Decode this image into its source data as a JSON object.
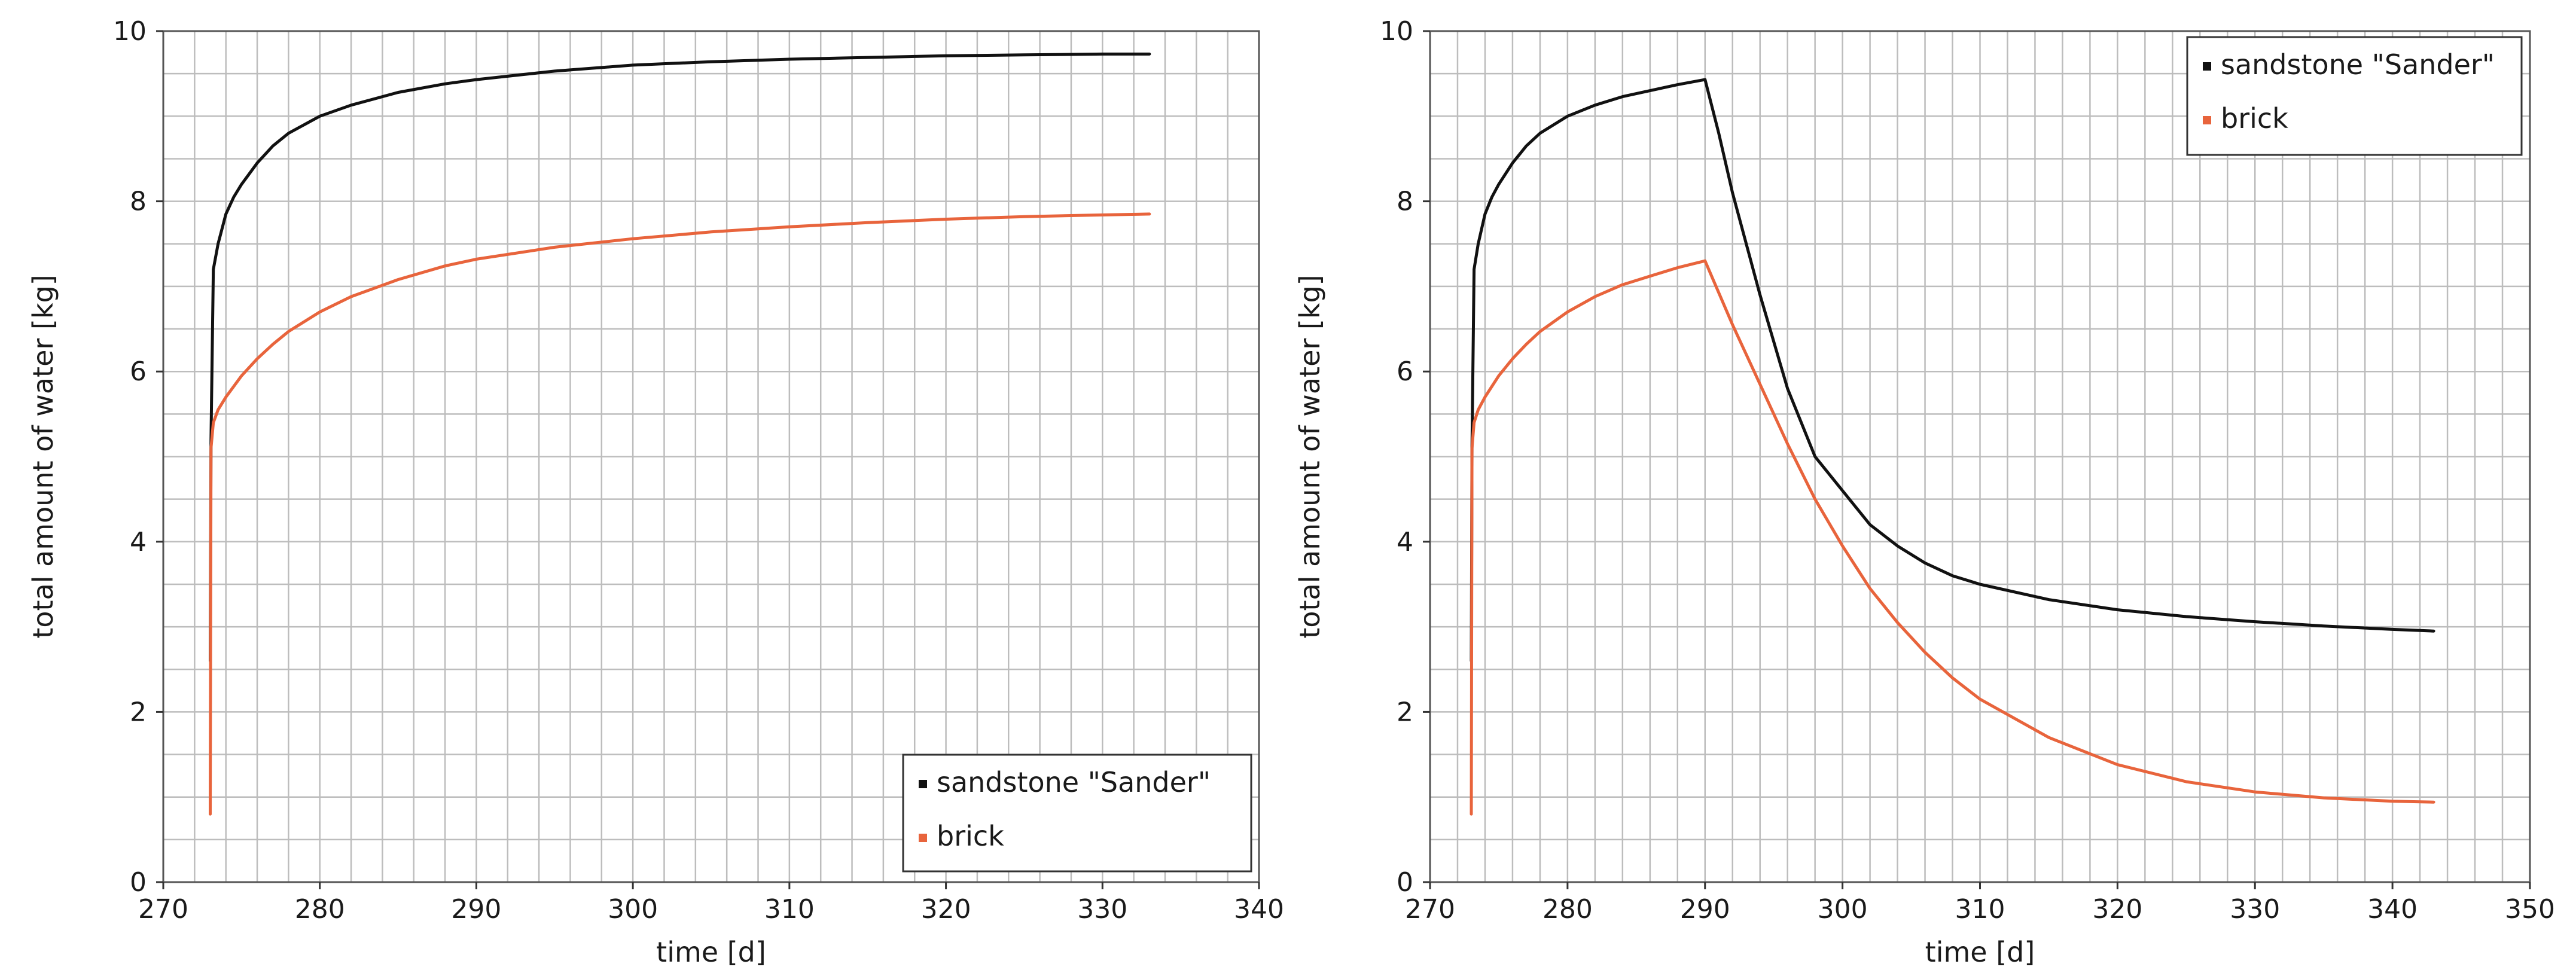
{
  "chart_data": [
    {
      "type": "line",
      "title": "",
      "xlabel": "time [d]",
      "ylabel": "total amount of water [kg]",
      "xlim": [
        270,
        340
      ],
      "ylim": [
        0,
        10
      ],
      "x_ticks": [
        "270",
        "280",
        "290",
        "300",
        "310",
        "320",
        "330",
        "340"
      ],
      "y_ticks": [
        "0",
        "2",
        "4",
        "6",
        "8",
        "10"
      ],
      "x_minor_step": 2,
      "y_minor_step": 0.5,
      "grid": true,
      "legend_position": "bottom-right",
      "series": [
        {
          "name": "sandstone \"Sander\"",
          "color": "#111111",
          "x": [
            273,
            273.05,
            273.2,
            273.5,
            274,
            274.5,
            275,
            276,
            277,
            278,
            280,
            282,
            285,
            288,
            290,
            295,
            300,
            305,
            310,
            315,
            320,
            325,
            330,
            333
          ],
          "y": [
            2.6,
            5.2,
            7.2,
            7.5,
            7.85,
            8.05,
            8.2,
            8.45,
            8.65,
            8.8,
            9.0,
            9.13,
            9.28,
            9.38,
            9.43,
            9.53,
            9.6,
            9.64,
            9.67,
            9.69,
            9.71,
            9.72,
            9.73,
            9.73
          ]
        },
        {
          "name": "brick",
          "color": "#e8643c",
          "x": [
            273,
            273.05,
            273.2,
            273.5,
            274,
            275,
            276,
            277,
            278,
            280,
            282,
            285,
            288,
            290,
            295,
            300,
            305,
            310,
            315,
            320,
            325,
            330,
            333
          ],
          "y": [
            0.8,
            5.1,
            5.4,
            5.55,
            5.7,
            5.95,
            6.15,
            6.32,
            6.47,
            6.7,
            6.88,
            7.08,
            7.24,
            7.32,
            7.46,
            7.56,
            7.64,
            7.7,
            7.75,
            7.79,
            7.82,
            7.84,
            7.85
          ]
        }
      ]
    },
    {
      "type": "line",
      "title": "",
      "xlabel": "time [d]",
      "ylabel": "total amount of water [kg]",
      "xlim": [
        270,
        350
      ],
      "ylim": [
        0,
        10
      ],
      "x_ticks": [
        "270",
        "280",
        "290",
        "300",
        "310",
        "320",
        "330",
        "340",
        "350"
      ],
      "y_ticks": [
        "0",
        "2",
        "4",
        "6",
        "8",
        "10"
      ],
      "x_minor_step": 2,
      "y_minor_step": 0.5,
      "grid": true,
      "legend_position": "top-right",
      "series": [
        {
          "name": "sandstone \"Sander\"",
          "color": "#111111",
          "x": [
            273,
            273.05,
            273.2,
            273.5,
            274,
            274.5,
            275,
            276,
            277,
            278,
            280,
            282,
            284,
            286,
            288,
            290,
            291,
            292,
            294,
            296,
            298,
            300,
            302,
            304,
            306,
            308,
            310,
            315,
            320,
            325,
            330,
            335,
            340,
            343
          ],
          "y": [
            2.6,
            5.1,
            7.2,
            7.5,
            7.85,
            8.05,
            8.2,
            8.45,
            8.65,
            8.8,
            9.0,
            9.13,
            9.23,
            9.3,
            9.37,
            9.43,
            8.8,
            8.1,
            6.9,
            5.8,
            5.0,
            4.6,
            4.2,
            3.95,
            3.75,
            3.6,
            3.5,
            3.32,
            3.2,
            3.12,
            3.06,
            3.01,
            2.97,
            2.95
          ]
        },
        {
          "name": "brick",
          "color": "#e8643c",
          "x": [
            273,
            273.05,
            273.2,
            273.5,
            274,
            275,
            276,
            277,
            278,
            280,
            282,
            284,
            286,
            288,
            290,
            292,
            294,
            296,
            298,
            300,
            302,
            304,
            306,
            308,
            310,
            315,
            320,
            325,
            330,
            335,
            340,
            343
          ],
          "y": [
            0.8,
            5.1,
            5.4,
            5.55,
            5.7,
            5.95,
            6.15,
            6.32,
            6.47,
            6.7,
            6.88,
            7.02,
            7.12,
            7.22,
            7.3,
            6.55,
            5.85,
            5.15,
            4.5,
            3.95,
            3.45,
            3.05,
            2.7,
            2.4,
            2.15,
            1.7,
            1.38,
            1.18,
            1.06,
            0.99,
            0.95,
            0.94
          ]
        }
      ]
    }
  ]
}
